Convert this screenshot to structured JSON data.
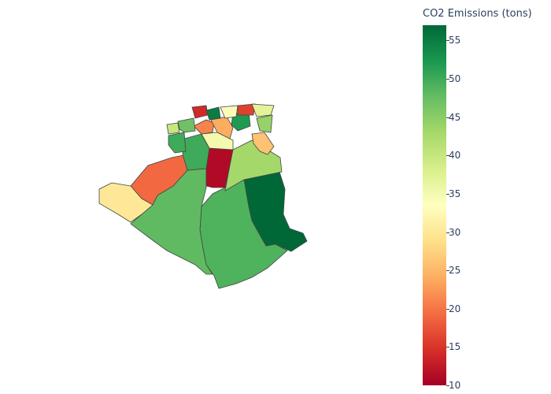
{
  "chart_data": {
    "type": "choropleth",
    "title": "",
    "colorbar": {
      "title": "CO2 Emissions (tons)",
      "min": 10,
      "max": 57,
      "ticks": [
        10,
        15,
        20,
        25,
        30,
        35,
        40,
        45,
        50,
        55
      ],
      "colorscale": "RdYlGn",
      "colors": [
        "#a50026",
        "#d73027",
        "#f46d43",
        "#fdae61",
        "#fee08b",
        "#ffffbf",
        "#d9ef8b",
        "#a6d96a",
        "#66bd63",
        "#1a9850",
        "#006837"
      ]
    },
    "regions": [
      {
        "id": "southeast-large",
        "value": 57
      },
      {
        "id": "south-central",
        "value": 49
      },
      {
        "id": "southwest",
        "value": 48
      },
      {
        "id": "west-orange",
        "value": 19
      },
      {
        "id": "far-west",
        "value": 30
      },
      {
        "id": "center-red",
        "value": 11
      },
      {
        "id": "center-east-lightgreen",
        "value": 43
      },
      {
        "id": "center-green",
        "value": 50
      },
      {
        "id": "north-west-green",
        "value": 50
      },
      {
        "id": "north-center-yellow",
        "value": 35
      },
      {
        "id": "north-orange-1",
        "value": 21
      },
      {
        "id": "north-orange-2",
        "value": 24
      },
      {
        "id": "north-east-peach",
        "value": 26
      },
      {
        "id": "north-light-1",
        "value": 40
      },
      {
        "id": "north-light-2",
        "value": 44
      },
      {
        "id": "north-green-1",
        "value": 47
      },
      {
        "id": "north-green-2",
        "value": 52
      },
      {
        "id": "north-red-1",
        "value": 14
      },
      {
        "id": "north-red-2",
        "value": 16
      },
      {
        "id": "north-darkgreen",
        "value": 55
      },
      {
        "id": "north-yellow-2",
        "value": 33
      },
      {
        "id": "north-yellow-3",
        "value": 37
      }
    ]
  }
}
